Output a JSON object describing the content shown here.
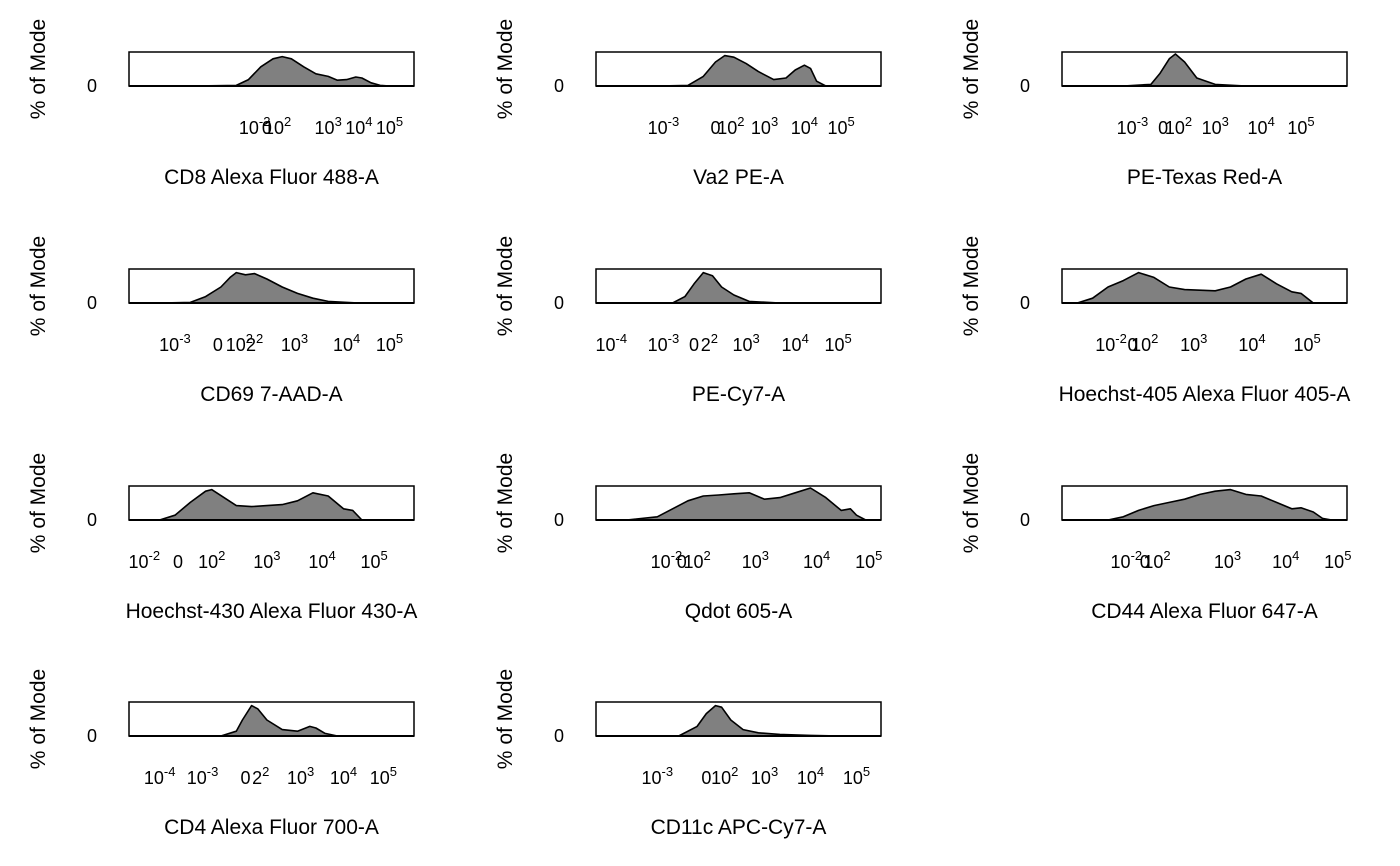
{
  "figure": {
    "y_axis_label": "% of Mode",
    "y_tick_label": "0"
  },
  "chart_data": [
    {
      "type": "area",
      "xlabel": "CD8 Alexa Fluor 488-A",
      "ylabel": "% of Mode",
      "ylim": [
        0,
        1
      ],
      "xlim": [
        -3.5,
        5.8
      ],
      "x_ticks": [
        {
          "pos": 0.6,
          "label": "10",
          "exp": "-2"
        },
        {
          "pos": 1.0,
          "label": "0"
        },
        {
          "pos": 1.35,
          "label": "10",
          "exp": "2"
        },
        {
          "pos": 3,
          "label": "10",
          "exp": "3"
        },
        {
          "pos": 4,
          "label": "10",
          "exp": "4"
        },
        {
          "pos": 5,
          "label": "10",
          "exp": "5"
        }
      ],
      "x": [
        -1.5,
        0.0,
        0.4,
        0.8,
        1.2,
        1.5,
        1.8,
        2.2,
        2.6,
        3.0,
        3.3,
        3.6,
        3.9,
        4.1,
        4.4,
        4.7,
        5.0
      ],
      "y": [
        0,
        0.02,
        0.2,
        0.6,
        0.85,
        0.92,
        0.85,
        0.6,
        0.38,
        0.3,
        0.18,
        0.2,
        0.28,
        0.25,
        0.1,
        0.02,
        0
      ]
    },
    {
      "type": "area",
      "xlabel": "Va2 PE-A",
      "ylabel": "% of Mode",
      "ylim": [
        0,
        1
      ],
      "xlim": [
        -3.5,
        5.8
      ],
      "x_ticks": [
        {
          "pos": -1.3,
          "label": "10",
          "exp": "-3"
        },
        {
          "pos": 0.4,
          "label": "0"
        },
        {
          "pos": 0.9,
          "label": "10",
          "exp": "2"
        },
        {
          "pos": 2,
          "label": "10",
          "exp": "3"
        },
        {
          "pos": 3.3,
          "label": "10",
          "exp": "4"
        },
        {
          "pos": 4.5,
          "label": "10",
          "exp": "5"
        }
      ],
      "x": [
        -1.5,
        -0.5,
        0.0,
        0.4,
        0.7,
        1.0,
        1.4,
        1.8,
        2.3,
        2.7,
        3.0,
        3.3,
        3.5,
        3.7,
        4.0
      ],
      "y": [
        0,
        0.02,
        0.3,
        0.75,
        0.95,
        0.9,
        0.7,
        0.45,
        0.2,
        0.25,
        0.5,
        0.65,
        0.55,
        0.15,
        0
      ]
    },
    {
      "type": "area",
      "xlabel": "PE-Texas Red-A",
      "ylabel": "% of Mode",
      "ylim": [
        0,
        1
      ],
      "xlim": [
        -3.5,
        5.8
      ],
      "x_ticks": [
        {
          "pos": -1.2,
          "label": "10",
          "exp": "-3"
        },
        {
          "pos": -0.2,
          "label": "0"
        },
        {
          "pos": 0.3,
          "label": "10",
          "exp": "2"
        },
        {
          "pos": 1.5,
          "label": "10",
          "exp": "3"
        },
        {
          "pos": 3,
          "label": "10",
          "exp": "4"
        },
        {
          "pos": 4.3,
          "label": "10",
          "exp": "5"
        }
      ],
      "x": [
        -1.5,
        -0.6,
        -0.3,
        0.0,
        0.2,
        0.5,
        0.9,
        1.5,
        2.5
      ],
      "y": [
        0,
        0.05,
        0.4,
        0.85,
        1.0,
        0.75,
        0.25,
        0.05,
        0
      ]
    },
    {
      "type": "area",
      "xlabel": "CD69 7-AAD-A",
      "ylabel": "% of Mode",
      "ylim": [
        0,
        1
      ],
      "xlim": [
        -3.5,
        5.8
      ],
      "x_ticks": [
        {
          "pos": -2,
          "label": "10",
          "exp": "-3"
        },
        {
          "pos": -0.6,
          "label": "0"
        },
        {
          "pos": 0.1,
          "label": "10",
          "exp": "2"
        },
        {
          "pos": 0.6,
          "label": "2",
          "exp": "2"
        },
        {
          "pos": 1.9,
          "label": "10",
          "exp": "3"
        },
        {
          "pos": 3.6,
          "label": "10",
          "exp": "4"
        },
        {
          "pos": 5,
          "label": "10",
          "exp": "5"
        }
      ],
      "x": [
        -2.5,
        -1.5,
        -1.0,
        -0.5,
        -0.2,
        0.0,
        0.3,
        0.6,
        1.0,
        1.5,
        2.0,
        2.5,
        3.0,
        4.0
      ],
      "y": [
        0,
        0.02,
        0.2,
        0.5,
        0.8,
        0.95,
        0.88,
        0.92,
        0.75,
        0.5,
        0.3,
        0.15,
        0.05,
        0
      ]
    },
    {
      "type": "area",
      "xlabel": "PE-Cy7-A",
      "ylabel": "% of Mode",
      "ylim": [
        0,
        1
      ],
      "xlim": [
        -3.5,
        5.8
      ],
      "x_ticks": [
        {
          "pos": -3,
          "label": "10",
          "exp": "-4"
        },
        {
          "pos": -1.3,
          "label": "10",
          "exp": "-3"
        },
        {
          "pos": -0.3,
          "label": "0"
        },
        {
          "pos": 0.2,
          "label": "2",
          "exp": "2"
        },
        {
          "pos": 1.4,
          "label": "10",
          "exp": "3"
        },
        {
          "pos": 3,
          "label": "10",
          "exp": "4"
        },
        {
          "pos": 4.4,
          "label": "10",
          "exp": "5"
        }
      ],
      "x": [
        -1.0,
        -0.6,
        -0.3,
        0.0,
        0.3,
        0.6,
        1.0,
        1.5,
        2.5
      ],
      "y": [
        0,
        0.2,
        0.6,
        0.95,
        0.85,
        0.5,
        0.25,
        0.05,
        0
      ]
    },
    {
      "type": "area",
      "xlabel": "Hoechst-405 Alexa Fluor 405-A",
      "ylabel": "% of Mode",
      "ylim": [
        0,
        1
      ],
      "xlim": [
        -3.5,
        5.8
      ],
      "x_ticks": [
        {
          "pos": -1.9,
          "label": "10",
          "exp": "-2"
        },
        {
          "pos": -1.2,
          "label": "0"
        },
        {
          "pos": -0.8,
          "label": "10",
          "exp": "2"
        },
        {
          "pos": 0.8,
          "label": "10",
          "exp": "3"
        },
        {
          "pos": 2.7,
          "label": "10",
          "exp": "4"
        },
        {
          "pos": 4.5,
          "label": "10",
          "exp": "5"
        }
      ],
      "x": [
        -3.0,
        -2.5,
        -2.0,
        -1.5,
        -1.0,
        -0.5,
        0.0,
        0.5,
        1.0,
        1.5,
        2.0,
        2.5,
        3.0,
        3.5,
        4.0,
        4.3,
        4.7
      ],
      "y": [
        0,
        0.15,
        0.5,
        0.7,
        0.95,
        0.8,
        0.5,
        0.42,
        0.4,
        0.38,
        0.5,
        0.75,
        0.9,
        0.6,
        0.35,
        0.3,
        0
      ]
    },
    {
      "type": "area",
      "xlabel": "Hoechst-430 Alexa Fluor 430-A",
      "ylabel": "% of Mode",
      "ylim": [
        0,
        1
      ],
      "xlim": [
        -3.5,
        5.8
      ],
      "x_ticks": [
        {
          "pos": -3,
          "label": "10",
          "exp": "-2"
        },
        {
          "pos": -1.9,
          "label": "0"
        },
        {
          "pos": -0.8,
          "label": "10",
          "exp": "2"
        },
        {
          "pos": 1,
          "label": "10",
          "exp": "3"
        },
        {
          "pos": 2.8,
          "label": "10",
          "exp": "4"
        },
        {
          "pos": 4.5,
          "label": "10",
          "exp": "5"
        }
      ],
      "x": [
        -2.5,
        -2.0,
        -1.5,
        -1.0,
        -0.8,
        -0.4,
        0.0,
        0.5,
        1.0,
        1.5,
        2.0,
        2.5,
        3.0,
        3.5,
        3.8,
        4.1
      ],
      "y": [
        0,
        0.15,
        0.55,
        0.9,
        0.95,
        0.7,
        0.45,
        0.42,
        0.45,
        0.48,
        0.6,
        0.85,
        0.75,
        0.35,
        0.3,
        0
      ]
    },
    {
      "type": "area",
      "xlabel": "Qdot 605-A",
      "ylabel": "% of Mode",
      "ylim": [
        0,
        1
      ],
      "xlim": [
        -3.5,
        5.8
      ],
      "x_ticks": [
        {
          "pos": -1.2,
          "label": "10",
          "exp": "-2"
        },
        {
          "pos": -0.7,
          "label": "0"
        },
        {
          "pos": -0.2,
          "label": "10",
          "exp": "2"
        },
        {
          "pos": 1.7,
          "label": "10",
          "exp": "3"
        },
        {
          "pos": 3.7,
          "label": "10",
          "exp": "4"
        },
        {
          "pos": 5.4,
          "label": "10",
          "exp": "5"
        }
      ],
      "x": [
        -2.5,
        -1.5,
        -1.0,
        -0.5,
        0.0,
        0.5,
        1.0,
        1.5,
        2.0,
        2.5,
        3.0,
        3.5,
        4.0,
        4.5,
        4.8,
        5.0,
        5.3
      ],
      "y": [
        0,
        0.1,
        0.35,
        0.6,
        0.75,
        0.78,
        0.82,
        0.85,
        0.65,
        0.7,
        0.85,
        1.0,
        0.7,
        0.3,
        0.35,
        0.15,
        0
      ]
    },
    {
      "type": "area",
      "xlabel": "CD44 Alexa Fluor 647-A",
      "ylabel": "% of Mode",
      "ylim": [
        0,
        1
      ],
      "xlim": [
        -3.5,
        5.8
      ],
      "x_ticks": [
        {
          "pos": -1.4,
          "label": "10",
          "exp": "-2"
        },
        {
          "pos": -0.8,
          "label": "0"
        },
        {
          "pos": -0.4,
          "label": "10",
          "exp": "2"
        },
        {
          "pos": 1.9,
          "label": "10",
          "exp": "3"
        },
        {
          "pos": 3.8,
          "label": "10",
          "exp": "4"
        },
        {
          "pos": 5.5,
          "label": "10",
          "exp": "5"
        }
      ],
      "x": [
        -2.0,
        -1.5,
        -1.0,
        -0.5,
        0.0,
        0.5,
        1.0,
        1.5,
        2.0,
        2.5,
        3.0,
        3.5,
        4.0,
        4.3,
        4.7,
        5.0,
        5.3
      ],
      "y": [
        0,
        0.1,
        0.3,
        0.45,
        0.55,
        0.65,
        0.8,
        0.9,
        0.95,
        0.8,
        0.75,
        0.55,
        0.35,
        0.38,
        0.25,
        0.05,
        0
      ]
    },
    {
      "type": "area",
      "xlabel": "CD4 Alexa Fluor 700-A",
      "ylabel": "% of Mode",
      "ylim": [
        0,
        1
      ],
      "xlim": [
        -3.5,
        5.8
      ],
      "x_ticks": [
        {
          "pos": -2.5,
          "label": "10",
          "exp": "-4"
        },
        {
          "pos": -1.1,
          "label": "10",
          "exp": "-3"
        },
        {
          "pos": 0.3,
          "label": "0"
        },
        {
          "pos": 0.8,
          "label": "2",
          "exp": "2"
        },
        {
          "pos": 2.1,
          "label": "10",
          "exp": "3"
        },
        {
          "pos": 3.5,
          "label": "10",
          "exp": "4"
        },
        {
          "pos": 4.8,
          "label": "10",
          "exp": "5"
        }
      ],
      "x": [
        -0.5,
        0.0,
        0.2,
        0.5,
        0.7,
        1.0,
        1.5,
        2.0,
        2.4,
        2.6,
        2.9,
        3.3
      ],
      "y": [
        0,
        0.15,
        0.5,
        0.95,
        0.85,
        0.5,
        0.2,
        0.15,
        0.3,
        0.25,
        0.08,
        0
      ]
    },
    {
      "type": "area",
      "xlabel": "CD11c APC-Cy7-A",
      "ylabel": "% of Mode",
      "ylim": [
        0,
        1
      ],
      "xlim": [
        -3.5,
        5.8
      ],
      "x_ticks": [
        {
          "pos": -1.5,
          "label": "10",
          "exp": "-3"
        },
        {
          "pos": 0.1,
          "label": "0"
        },
        {
          "pos": 0.7,
          "label": "10",
          "exp": "2"
        },
        {
          "pos": 2,
          "label": "10",
          "exp": "3"
        },
        {
          "pos": 3.5,
          "label": "10",
          "exp": "4"
        },
        {
          "pos": 5,
          "label": "10",
          "exp": "5"
        }
      ],
      "x": [
        -0.8,
        -0.2,
        0.1,
        0.4,
        0.6,
        0.9,
        1.3,
        1.8,
        2.5,
        3.5,
        4.5
      ],
      "y": [
        0,
        0.3,
        0.7,
        0.95,
        0.9,
        0.5,
        0.2,
        0.1,
        0.05,
        0.02,
        0
      ]
    }
  ]
}
